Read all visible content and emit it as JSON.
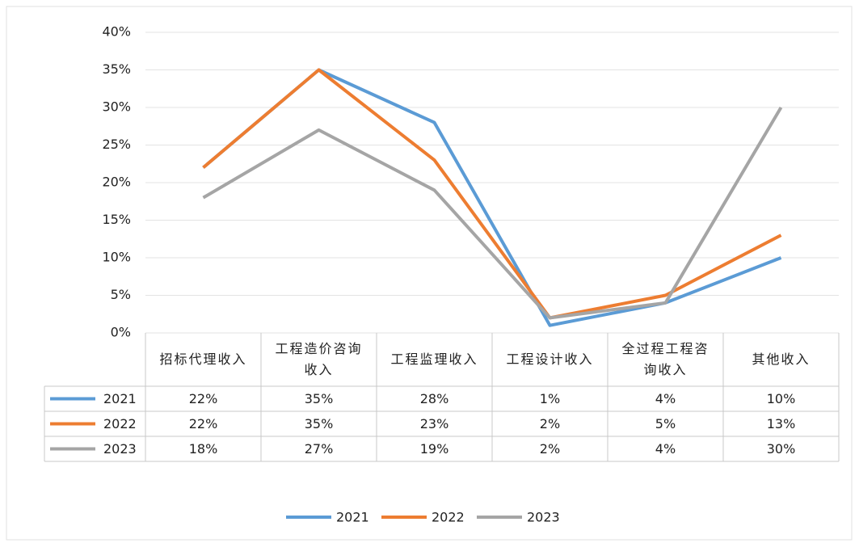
{
  "chart_data": {
    "type": "line",
    "categories": [
      "招标代理收入",
      "工程造价咨询收入",
      "工程监理收入",
      "工程设计收入",
      "全过程工程咨询收入",
      "其他收入"
    ],
    "series": [
      {
        "name": "2021",
        "color": "#5b9bd5",
        "values": [
          22,
          35,
          28,
          1,
          4,
          10
        ],
        "value_labels": [
          "22%",
          "35%",
          "28%",
          "1%",
          "4%",
          "10%"
        ]
      },
      {
        "name": "2022",
        "color": "#ed7d31",
        "values": [
          22,
          35,
          23,
          2,
          5,
          13
        ],
        "value_labels": [
          "22%",
          "35%",
          "23%",
          "2%",
          "5%",
          "13%"
        ]
      },
      {
        "name": "2023",
        "color": "#a5a5a5",
        "values": [
          18,
          27,
          19,
          2,
          4,
          30
        ],
        "value_labels": [
          "18%",
          "27%",
          "19%",
          "2%",
          "4%",
          "30%"
        ]
      }
    ],
    "ylim": [
      0,
      40
    ],
    "yticks": [
      {
        "value": 0,
        "label": "0%"
      },
      {
        "value": 5,
        "label": "5%"
      },
      {
        "value": 10,
        "label": "10%"
      },
      {
        "value": 15,
        "label": "15%"
      },
      {
        "value": 20,
        "label": "20%"
      },
      {
        "value": 25,
        "label": "25%"
      },
      {
        "value": 30,
        "label": "30%"
      },
      {
        "value": 35,
        "label": "35%"
      },
      {
        "value": 40,
        "label": "40%"
      }
    ],
    "grid": true,
    "legend": "bottom"
  }
}
